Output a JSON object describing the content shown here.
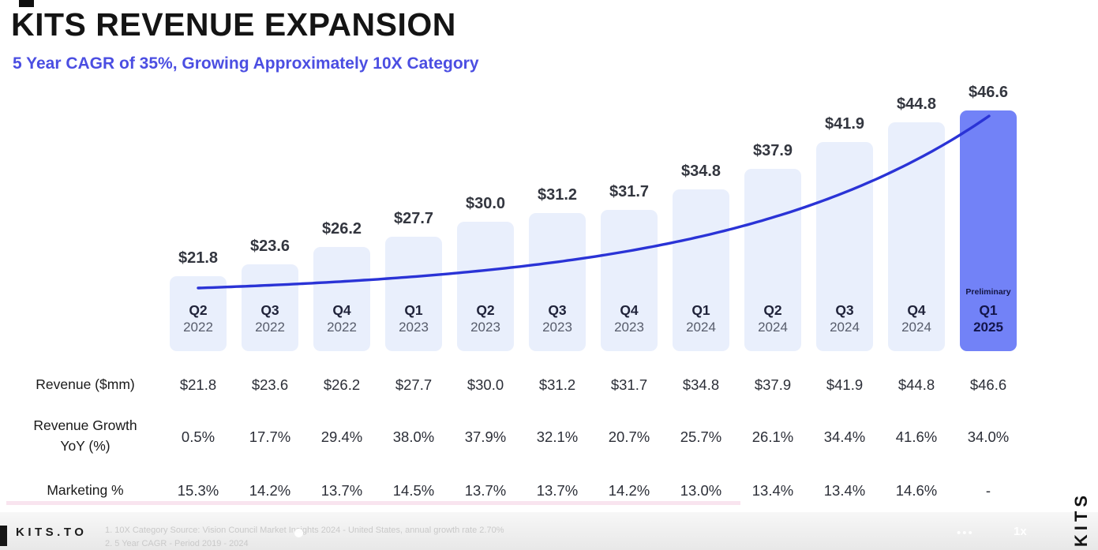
{
  "header": {
    "title": "KITS REVENUE EXPANSION",
    "subtitle": "5 Year CAGR of 35%, Growing Approximately 10X Category"
  },
  "chart_data": {
    "type": "bar",
    "title": "KITS REVENUE EXPANSION",
    "subtitle": "5 Year CAGR of 35%, Growing Approximately 10X Category",
    "categories": [
      "Q2 2022",
      "Q3 2022",
      "Q4 2022",
      "Q1 2023",
      "Q2 2023",
      "Q3 2023",
      "Q4 2023",
      "Q1 2024",
      "Q2 2024",
      "Q3 2024",
      "Q4 2024",
      "Q1 2025"
    ],
    "values": [
      21.8,
      23.6,
      26.2,
      27.7,
      30.0,
      31.2,
      31.7,
      34.8,
      37.9,
      41.9,
      44.8,
      46.6
    ],
    "bar_labels": [
      "$21.8",
      "$23.6",
      "$26.2",
      "$27.7",
      "$30.0",
      "$31.2",
      "$31.7",
      "$34.8",
      "$37.9",
      "$41.9",
      "$44.8",
      "$46.6"
    ],
    "highlight": {
      "index": 11,
      "note": "Preliminary"
    },
    "overlay_line": {
      "type": "smooth exponential trend line through bars"
    },
    "ylabel": "Revenue ($mm)",
    "ylim": [
      0,
      50
    ],
    "grid": false,
    "legend": false,
    "series": [
      {
        "name": "Revenue ($mm)",
        "values": [
          21.8,
          23.6,
          26.2,
          27.7,
          30.0,
          31.2,
          31.7,
          34.8,
          37.9,
          41.9,
          44.8,
          46.6
        ]
      },
      {
        "name": "Revenue Growth YoY (%)",
        "values": [
          0.5,
          17.7,
          29.4,
          38.0,
          37.9,
          32.1,
          20.7,
          25.7,
          26.1,
          34.4,
          41.6,
          34.0
        ]
      },
      {
        "name": "Marketing %",
        "values": [
          15.3,
          14.2,
          13.7,
          14.5,
          13.7,
          13.7,
          14.2,
          13.0,
          13.4,
          13.4,
          14.6,
          null
        ]
      }
    ]
  },
  "table": {
    "rows": [
      {
        "label_lines": [
          "Revenue ($mm)"
        ],
        "values": [
          "$21.8",
          "$23.6",
          "$26.2",
          "$27.7",
          "$30.0",
          "$31.2",
          "$31.7",
          "$34.8",
          "$37.9",
          "$41.9",
          "$44.8",
          "$46.6"
        ]
      },
      {
        "label_lines": [
          "Revenue Growth",
          "YoY (%)"
        ],
        "values": [
          "0.5%",
          "17.7%",
          "29.4%",
          "38.0%",
          "37.9%",
          "32.1%",
          "20.7%",
          "25.7%",
          "26.1%",
          "34.4%",
          "41.6%",
          "34.0%"
        ]
      },
      {
        "label_lines": [
          "Marketing %"
        ],
        "values": [
          "15.3%",
          "14.2%",
          "13.7%",
          "14.5%",
          "13.7%",
          "13.7%",
          "14.2%",
          "13.0%",
          "13.4%",
          "13.4%",
          "14.6%",
          "-"
        ]
      }
    ]
  },
  "footer": {
    "logo": "KITS.TO",
    "footnotes": [
      "1. 10X Category Source: Vision Council Market Insights 2024 - United States, annual growth rate 2.70%",
      "2. 5 Year CAGR - Period 2019 - 2024"
    ],
    "player_menu": "•••",
    "player_speed": "1x",
    "watermark": "KITS"
  },
  "colors": {
    "bar": "#e9effc",
    "highlight_bar": "#7282f7",
    "line": "#2a33d6",
    "subtitle_accent": "#4b4ee2",
    "pink_underline": "#f9e4ef"
  }
}
